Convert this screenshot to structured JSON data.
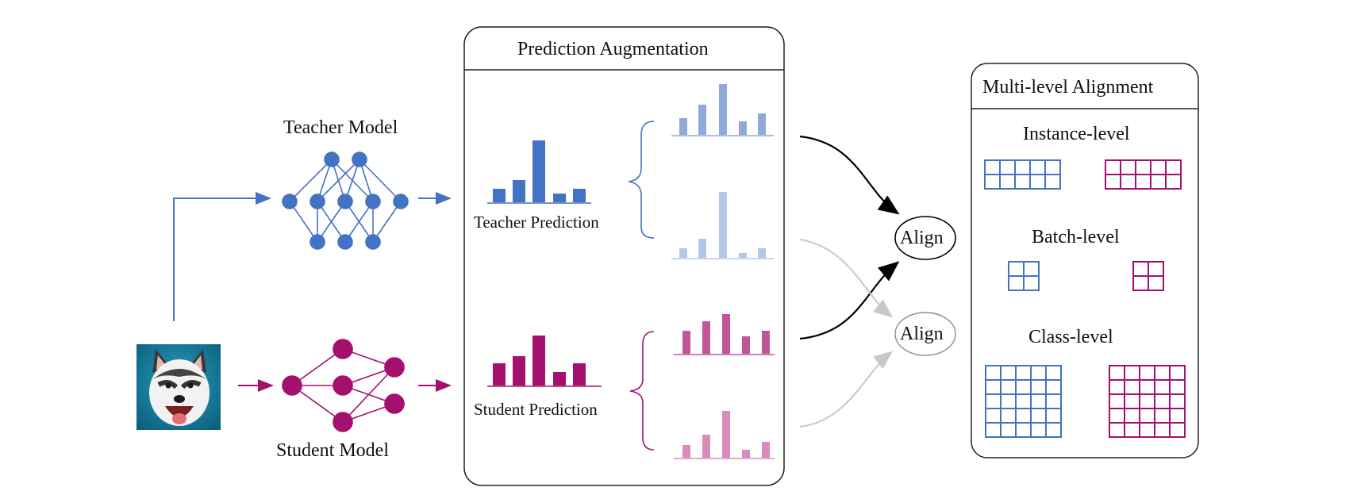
{
  "teacher_model": {
    "label": "Teacher Model"
  },
  "student_model": {
    "label": "Student Model"
  },
  "input_image": {
    "subject": "husky dog photo"
  },
  "augmentation_panel": {
    "title": "Prediction Augmentation",
    "teacher_prediction_label": "Teacher Prediction",
    "student_prediction_label": "Student Prediction"
  },
  "align_nodes": [
    "Align",
    "Align"
  ],
  "alignment_panel": {
    "title": "Multi-level Alignment",
    "levels": [
      {
        "label": "Instance-level"
      },
      {
        "label": "Batch-level"
      },
      {
        "label": "Class-level"
      }
    ]
  },
  "colors": {
    "teacher": "#4472c4",
    "teacher_aug_1": "#8eaadb",
    "teacher_aug_2": "#b4c7e7",
    "student": "#a50f6e",
    "student_aug_1": "#c2559a",
    "student_aug_2": "#d98bbd",
    "arrow_dark": "#000000",
    "arrow_light": "#c8c8c8"
  }
}
